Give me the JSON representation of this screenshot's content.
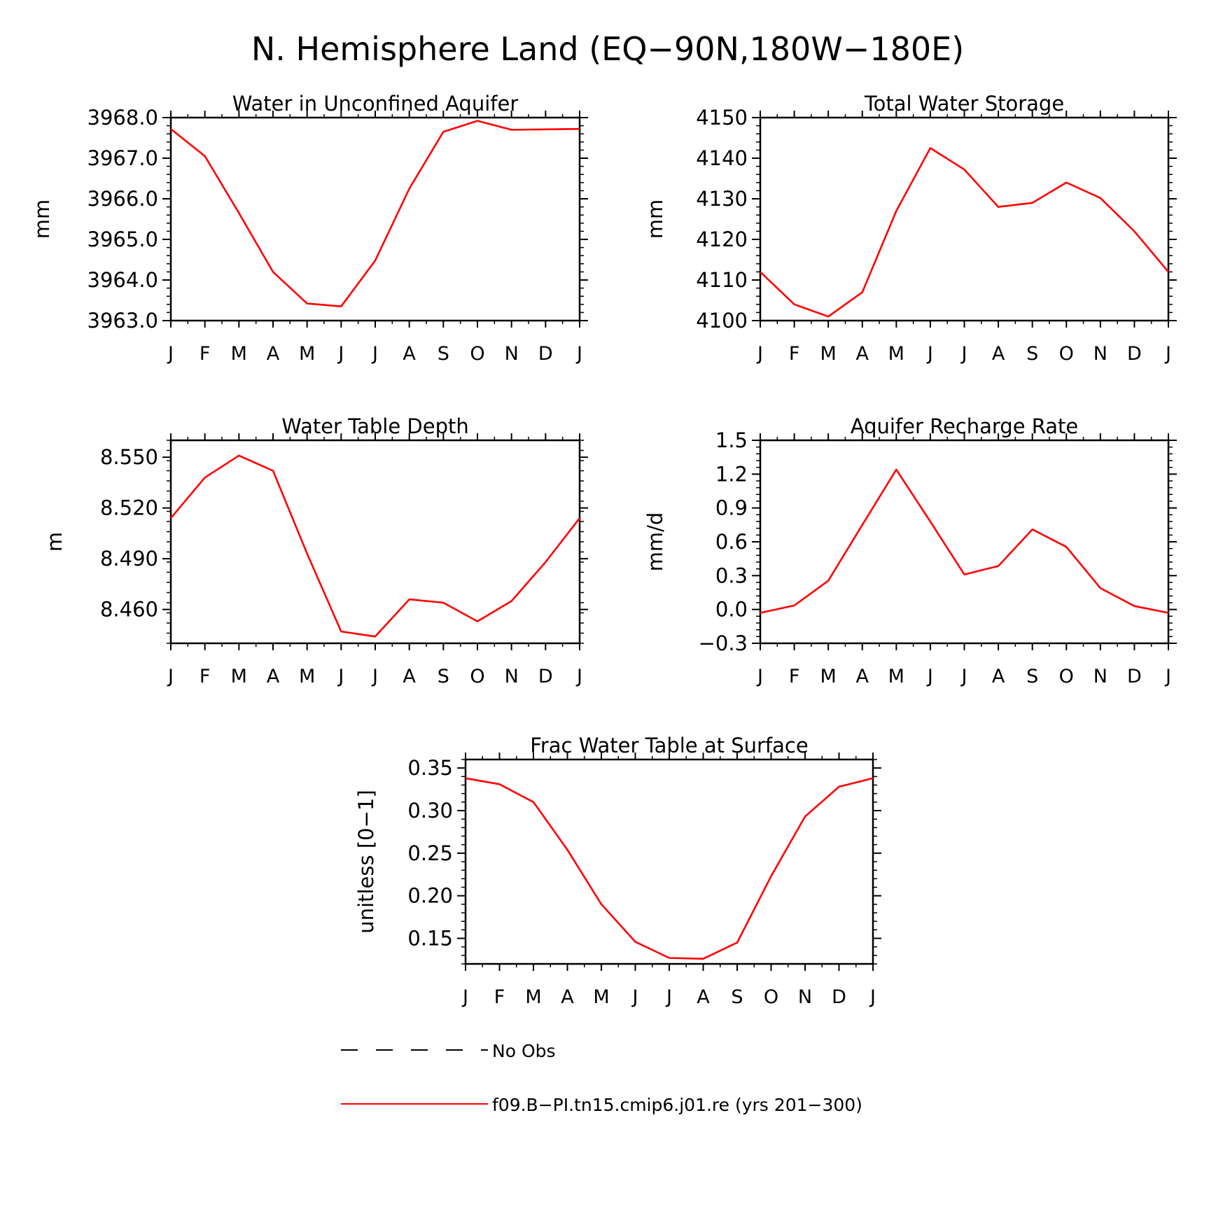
{
  "title": "N. Hemisphere Land (EQ−90N,180W−180E)",
  "colors": {
    "model": "#ff0000",
    "obs": "#000000",
    "axis": "#000000"
  },
  "legend": {
    "items": [
      {
        "label": "No Obs",
        "style": "dashed",
        "color": "#000000"
      },
      {
        "label": "f09.B−PI.tn15.cmip6.j01.re (yrs 201−300)",
        "style": "solid",
        "color": "#ff0000"
      }
    ]
  },
  "chart_data": [
    {
      "type": "line",
      "title": "Water in Unconfined Aquifer",
      "ylabel": "mm",
      "categories": [
        "J",
        "F",
        "M",
        "A",
        "M",
        "J",
        "J",
        "A",
        "S",
        "O",
        "N",
        "D",
        "J"
      ],
      "ylim": [
        3963.0,
        3968.0
      ],
      "yticks": [
        3963.0,
        3964.0,
        3965.0,
        3966.0,
        3967.0,
        3968.0
      ],
      "ytick_labels": [
        "3963.0",
        "3964.0",
        "3965.0",
        "3966.0",
        "3967.0",
        "3968.0"
      ],
      "yminor": 0.2,
      "series": [
        {
          "values": [
            3967.72,
            3967.05,
            3965.65,
            3964.2,
            3963.42,
            3963.35,
            3964.48,
            3966.25,
            3967.65,
            3967.92,
            3967.7,
            3967.71,
            3967.72
          ]
        }
      ]
    },
    {
      "type": "line",
      "title": "Total Water Storage",
      "ylabel": "mm",
      "categories": [
        "J",
        "F",
        "M",
        "A",
        "M",
        "J",
        "J",
        "A",
        "S",
        "O",
        "N",
        "D",
        "J"
      ],
      "ylim": [
        4100,
        4150
      ],
      "yticks": [
        4100,
        4110,
        4120,
        4130,
        4140,
        4150
      ],
      "ytick_labels": [
        "4100",
        "4110",
        "4120",
        "4130",
        "4140",
        "4150"
      ],
      "yminor": 2,
      "series": [
        {
          "values": [
            4112,
            4104,
            4101,
            4107,
            4127,
            4142.5,
            4137.2,
            4128,
            4129,
            4134,
            4130.2,
            4122,
            4112
          ]
        }
      ]
    },
    {
      "type": "line",
      "title": "Water Table Depth",
      "ylabel": "m",
      "categories": [
        "J",
        "F",
        "M",
        "A",
        "M",
        "J",
        "J",
        "A",
        "S",
        "O",
        "N",
        "D",
        "J"
      ],
      "ylim": [
        8.44,
        8.56
      ],
      "yticks": [
        8.46,
        8.49,
        8.52,
        8.55
      ],
      "ytick_labels": [
        "8.460",
        "8.490",
        "8.520",
        "8.550"
      ],
      "yminor": 0.006,
      "series": [
        {
          "values": [
            8.514,
            8.538,
            8.551,
            8.542,
            8.493,
            8.447,
            8.444,
            8.466,
            8.464,
            8.453,
            8.465,
            8.488,
            8.514
          ]
        }
      ]
    },
    {
      "type": "line",
      "title": "Aquifer Recharge Rate",
      "ylabel": "mm/d",
      "categories": [
        "J",
        "F",
        "M",
        "A",
        "M",
        "J",
        "J",
        "A",
        "S",
        "O",
        "N",
        "D",
        "J"
      ],
      "ylim": [
        -0.3,
        1.5
      ],
      "yticks": [
        -0.3,
        0.0,
        0.3,
        0.6,
        0.9,
        1.2,
        1.5
      ],
      "ytick_labels": [
        "−0.3",
        "0.0",
        "0.3",
        "0.6",
        "0.9",
        "1.2",
        "1.5"
      ],
      "yminor": 0.06,
      "series": [
        {
          "values": [
            -0.03,
            0.035,
            0.255,
            0.75,
            1.24,
            0.78,
            0.31,
            0.385,
            0.71,
            0.555,
            0.19,
            0.03,
            -0.03
          ]
        }
      ]
    },
    {
      "type": "line",
      "title": "Frac Water Table at Surface",
      "ylabel": "unitless [0−1]",
      "categories": [
        "J",
        "F",
        "M",
        "A",
        "M",
        "J",
        "J",
        "A",
        "S",
        "O",
        "N",
        "D",
        "J"
      ],
      "ylim": [
        0.12,
        0.36
      ],
      "yticks": [
        0.15,
        0.2,
        0.25,
        0.3,
        0.35
      ],
      "ytick_labels": [
        "0.15",
        "0.20",
        "0.25",
        "0.30",
        "0.35"
      ],
      "yminor": 0.01,
      "series": [
        {
          "values": [
            0.338,
            0.331,
            0.31,
            0.254,
            0.19,
            0.146,
            0.127,
            0.126,
            0.145,
            0.223,
            0.293,
            0.328,
            0.338
          ]
        }
      ]
    }
  ]
}
